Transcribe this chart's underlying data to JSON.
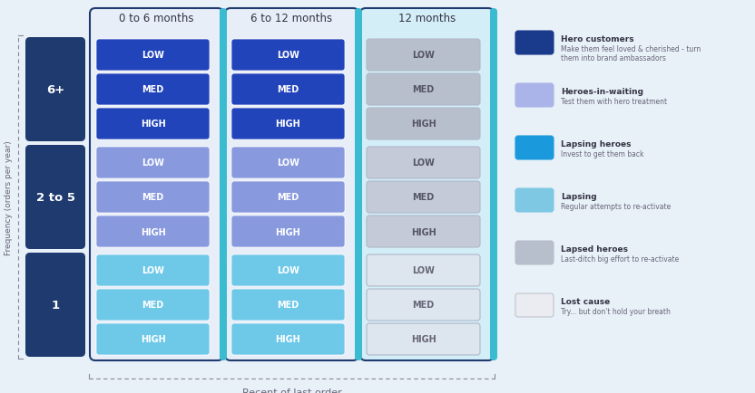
{
  "background_color": "#e8f0f8",
  "col_headers": [
    "0 to 6 months",
    "6 to 12 months",
    "12 months"
  ],
  "row_headers": [
    "6+",
    "2 to 5",
    "1"
  ],
  "sub_labels": [
    "LOW",
    "MED",
    "HIGH"
  ],
  "freq_label": "Frequency (orders per year)",
  "x_label": "Recent of last order",
  "cell_colors": [
    [
      "#2244bb",
      "#2244bb",
      "#b8bfcc"
    ],
    [
      "#8899dd",
      "#8899dd",
      "#c4cad8"
    ],
    [
      "#6ec8e8",
      "#6ec8e8",
      "#dde5ee"
    ]
  ],
  "cell_text_colors": [
    [
      "#ffffff",
      "#ffffff",
      "#555566"
    ],
    [
      "#ffffff",
      "#ffffff",
      "#555566"
    ],
    [
      "#ffffff",
      "#ffffff",
      "#666677"
    ]
  ],
  "col_bg_colors": [
    "#ffffff",
    "#ffffff",
    "#ffffff"
  ],
  "col_border_colors": [
    "#1e3a6e",
    "#1e3a6e",
    "#1e3a6e"
  ],
  "col_bg_fill": [
    "#e8eef8",
    "#e8eef8",
    "#d4eef8"
  ],
  "teal_stripe": "#3bbbd0",
  "row_header_color": "#1e3a6e",
  "legend_items": [
    {
      "label": "Hero customers",
      "sublabel": "Make them feel loved & cherished - turn\nthem into brand ambassadors",
      "color": "#1a3a8c",
      "border": "#1a3a8c"
    },
    {
      "label": "Heroes-in-waiting",
      "sublabel": "Test them with hero treatment",
      "color": "#aab4e8",
      "border": "#aab4e8"
    },
    {
      "label": "Lapsing heroes",
      "sublabel": "Invest to get them back",
      "color": "#1a9adc",
      "border": "#1a9adc"
    },
    {
      "label": "Lapsing",
      "sublabel": "Regular attempts to re-activate",
      "color": "#7ec8e3",
      "border": "#7ec8e3"
    },
    {
      "label": "Lapsed heroes",
      "sublabel": "Last-ditch big effort to re-activate",
      "color": "#b8bfcc",
      "border": "#b8bfcc"
    },
    {
      "label": "Lost cause",
      "sublabel": "Try... but don't hold your breath",
      "color": "#eaecf2",
      "border": "#c0c4cc"
    }
  ]
}
